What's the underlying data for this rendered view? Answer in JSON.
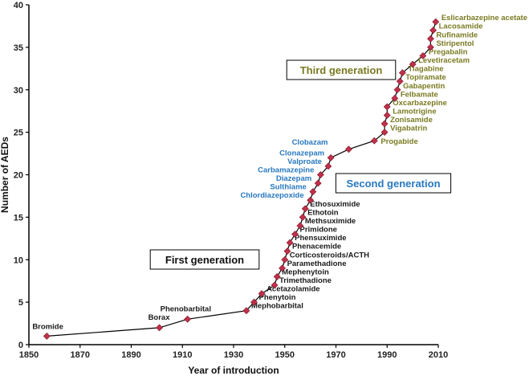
{
  "chart_data": {
    "type": "line",
    "xlabel": "Year of introduction",
    "ylabel": "Number of AEDs",
    "xlim": [
      1850,
      2010
    ],
    "ylim": [
      0,
      40
    ],
    "xticks": [
      1850,
      1870,
      1890,
      1910,
      1930,
      1950,
      1970,
      1990,
      2010
    ],
    "yticks": [
      0,
      5,
      10,
      15,
      20,
      25,
      30,
      35,
      40
    ],
    "grid": false,
    "colors": {
      "line": "#000000",
      "marker": "#c0304a",
      "first": "#1a1a1a",
      "second": "#2878c0",
      "third": "#7a7a22"
    },
    "points": [
      {
        "x": 1857,
        "y": 1,
        "label": "Bromide",
        "gen": "first"
      },
      {
        "x": 1901,
        "y": 2,
        "label": "Borax",
        "gen": "first"
      },
      {
        "x": 1912,
        "y": 3,
        "label": "Phenobarbital",
        "gen": "first"
      },
      {
        "x": 1935,
        "y": 4,
        "label": "Mephobarbital",
        "gen": "first"
      },
      {
        "x": 1938,
        "y": 5,
        "label": "Phenytoin",
        "gen": "first"
      },
      {
        "x": 1941,
        "y": 6,
        "label": "Acetazolamide",
        "gen": "first"
      },
      {
        "x": 1946,
        "y": 7,
        "label": "Trimethadione",
        "gen": "first"
      },
      {
        "x": 1947,
        "y": 8,
        "label": "Mephenytoin",
        "gen": "first"
      },
      {
        "x": 1949,
        "y": 9,
        "label": "Paramethadione",
        "gen": "first"
      },
      {
        "x": 1950,
        "y": 10,
        "label": "Corticosteroids/ACTH",
        "gen": "first"
      },
      {
        "x": 1951,
        "y": 11,
        "label": "Phenacemide",
        "gen": "first"
      },
      {
        "x": 1952,
        "y": 12,
        "label": "Phensuximide",
        "gen": "first"
      },
      {
        "x": 1954,
        "y": 13,
        "label": "Primidone",
        "gen": "first"
      },
      {
        "x": 1956,
        "y": 14,
        "label": "Methsuximide",
        "gen": "first"
      },
      {
        "x": 1957,
        "y": 15,
        "label": "Ethotoin",
        "gen": "first"
      },
      {
        "x": 1958,
        "y": 16,
        "label": "Ethosuximide",
        "gen": "first"
      },
      {
        "x": 1960,
        "y": 17,
        "label": "Chlordiazepoxide",
        "gen": "second"
      },
      {
        "x": 1961,
        "y": 18,
        "label": "Sulthiame",
        "gen": "second"
      },
      {
        "x": 1963,
        "y": 19,
        "label": "Diazepam",
        "gen": "second"
      },
      {
        "x": 1964,
        "y": 20,
        "label": "Carbamazepine",
        "gen": "second"
      },
      {
        "x": 1967,
        "y": 21,
        "label": "Valproate",
        "gen": "second"
      },
      {
        "x": 1968,
        "y": 22,
        "label": "Clonazepam",
        "gen": "second"
      },
      {
        "x": 1975,
        "y": 23,
        "label": "Clobazam",
        "gen": "second"
      },
      {
        "x": 1985,
        "y": 24,
        "label": "Progabide",
        "gen": "third"
      },
      {
        "x": 1989,
        "y": 25,
        "label": "Vigabatrin",
        "gen": "third"
      },
      {
        "x": 1989,
        "y": 26,
        "label": "Zonisamide",
        "gen": "third"
      },
      {
        "x": 1990,
        "y": 27,
        "label": "Lamotrigine",
        "gen": "third"
      },
      {
        "x": 1990,
        "y": 28,
        "label": "Oxcarbazepine",
        "gen": "third"
      },
      {
        "x": 1993,
        "y": 29,
        "label": "Felbamate",
        "gen": "third"
      },
      {
        "x": 1994,
        "y": 30,
        "label": "Gabapentin",
        "gen": "third"
      },
      {
        "x": 1995,
        "y": 31,
        "label": "Topiramate",
        "gen": "third"
      },
      {
        "x": 1996,
        "y": 32,
        "label": "Tiagabine",
        "gen": "third"
      },
      {
        "x": 2000,
        "y": 33,
        "label": "Levetiracetam",
        "gen": "third"
      },
      {
        "x": 2004,
        "y": 34,
        "label": "Pregabalin",
        "gen": "third"
      },
      {
        "x": 2007,
        "y": 35,
        "label": "Stiripentol",
        "gen": "third"
      },
      {
        "x": 2007,
        "y": 36,
        "label": "Rufinamide",
        "gen": "third"
      },
      {
        "x": 2008,
        "y": 37,
        "label": "Lacosamide",
        "gen": "third"
      },
      {
        "x": 2009,
        "y": 38,
        "label": "Eslicarbazepine acetate",
        "gen": "third"
      }
    ],
    "annotations": [
      {
        "text": "First generation",
        "gen": "first",
        "boxed": true
      },
      {
        "text": "Second generation",
        "gen": "second",
        "boxed": true
      },
      {
        "text": "Third generation",
        "gen": "third",
        "boxed": true
      }
    ]
  }
}
